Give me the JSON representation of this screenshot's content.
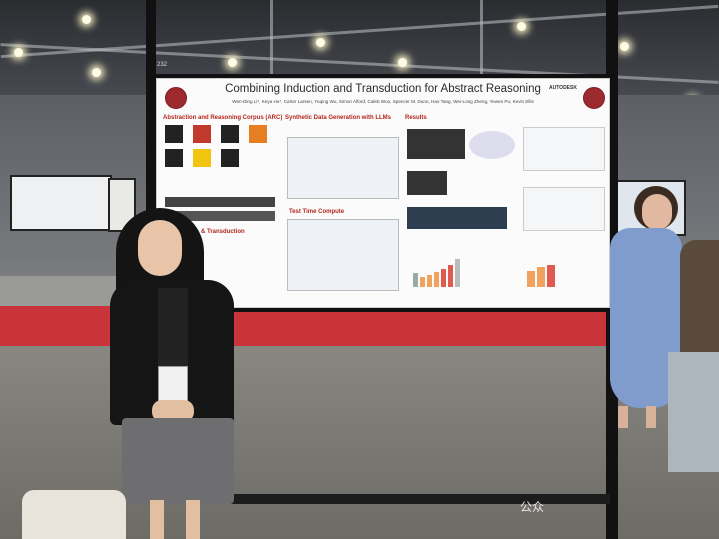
{
  "booth_number": "232",
  "poster": {
    "title": "Combining Induction and Transduction for Abstract Reasoning",
    "authors": "Wen-Ding Li*, Keya Hu*, Carter Larsen, Yuqing Wu, Simon Alford, Caleb Woo, Spencer M. Dunn, Hao Tang, Wei-Long Zheng, Yewen Pu, Kevin Ellis",
    "sponsor_logo": "AUTODESK",
    "sections": {
      "arc": "Abstraction and Reasoning Corpus (ARC)",
      "synthetic": "Synthetic Data Generation with LLMs",
      "results": "Results",
      "test_time": "Test Time Compute",
      "ind_trans": "& Transduction"
    }
  },
  "watermark": "公众"
}
